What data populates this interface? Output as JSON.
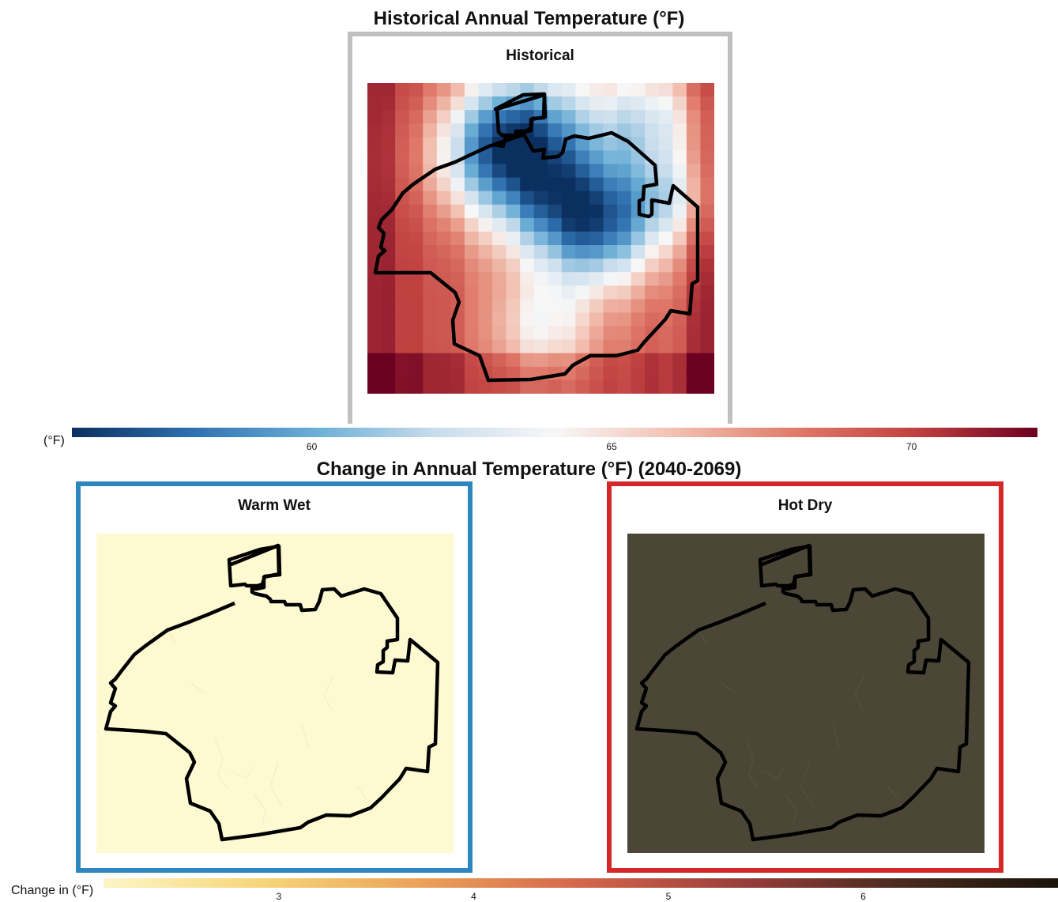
{
  "historical": {
    "title": "Historical Annual Temperature (°F)",
    "panel_label": "Historical",
    "frame_color": "#c0c0c0",
    "colorbar": {
      "unit": "(°F)",
      "min": 56,
      "max": 72.1,
      "ticks": [
        {
          "value": 60,
          "label": "60"
        },
        {
          "value": 65,
          "label": "65"
        },
        {
          "value": 70,
          "label": "70"
        }
      ],
      "colors": [
        "#0b3060",
        "#2f70b0",
        "#6aaed6",
        "#c7dcec",
        "#f7f7f7",
        "#f2c0b0",
        "#e07a6a",
        "#c04040",
        "#6b0020"
      ]
    }
  },
  "future": {
    "title": "Change in Annual Temperature (°F) (2040-2069)",
    "panels": [
      {
        "label": "Warm Wet",
        "frame_color": "#2e86c1",
        "fill_color": "#fdfad2"
      },
      {
        "label": "Hot Dry",
        "frame_color": "#d62728",
        "fill_color": "#4b4636"
      }
    ],
    "colorbar": {
      "unit": "Change in (°F)",
      "min": 2.1,
      "max": 7.0,
      "ticks": [
        {
          "value": 3,
          "label": "3"
        },
        {
          "value": 4,
          "label": "4"
        },
        {
          "value": 5,
          "label": "5"
        },
        {
          "value": 6,
          "label": "6"
        }
      ],
      "colors": [
        "#fdf5c6",
        "#f6d57a",
        "#eaa25a",
        "#d4664b",
        "#9a3f3b",
        "#4a2a1e",
        "#1a140a"
      ]
    }
  }
}
